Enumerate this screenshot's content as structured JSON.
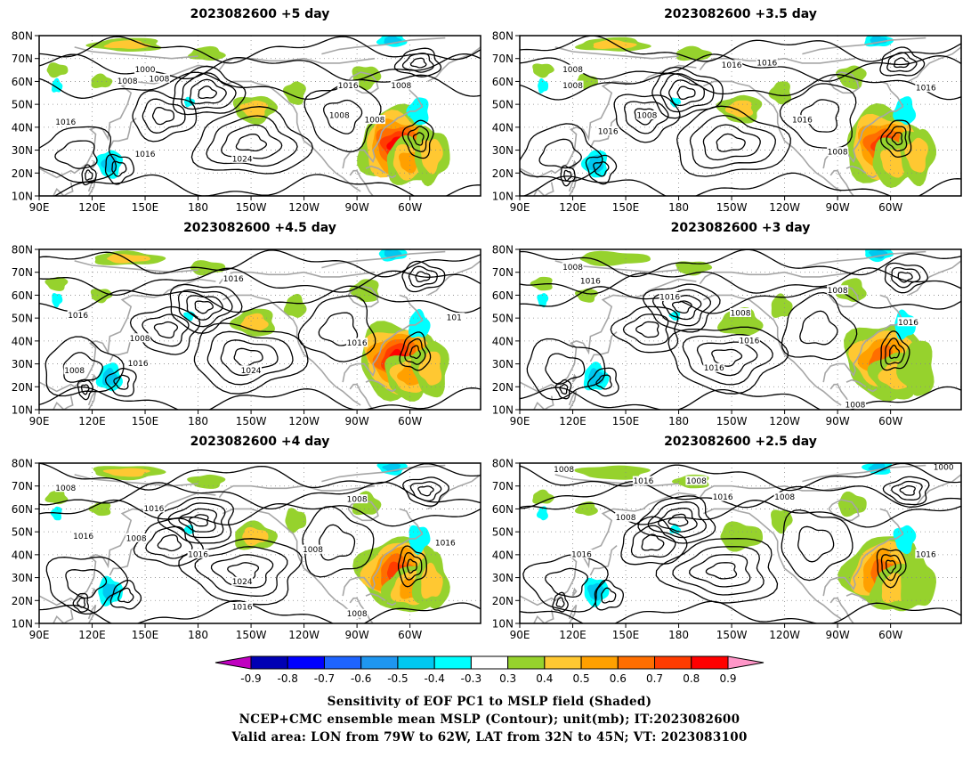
{
  "panels": [
    {
      "title": "2023082600  +5 day",
      "labels": [
        "1000",
        "1008",
        "1008",
        "1016",
        "1016",
        "1016",
        "1024",
        "1008",
        "1008",
        "1008"
      ]
    },
    {
      "title": "2023082600  +3.5  day",
      "labels": [
        "1008",
        "1008",
        "1016",
        "1008",
        "1016",
        "1016",
        "1016",
        "1008",
        "1016"
      ]
    },
    {
      "title": "2023082600  +4.5  day",
      "labels": [
        "1016",
        "1008",
        "1008",
        "1016",
        "1016",
        "1024",
        "1016",
        "101"
      ]
    },
    {
      "title": "2023082600  +3  day",
      "labels": [
        "1008",
        "1016",
        "1016",
        "1008",
        "1016",
        "1008",
        "1016",
        "1016",
        "1008"
      ]
    },
    {
      "title": "2023082600  +4  day",
      "labels": [
        "1008",
        "1016",
        "1016",
        "1008",
        "1016",
        "1024",
        "1016",
        "1008",
        "1008",
        "1008",
        "1016"
      ]
    },
    {
      "title": "2023082600  +2.5  day",
      "labels": [
        "1008",
        "1016",
        "1008",
        "1016",
        "1008",
        "1016",
        "1008",
        "1000",
        "1016"
      ]
    }
  ],
  "axes": {
    "lat_ticks": [
      "80N",
      "70N",
      "60N",
      "50N",
      "40N",
      "30N",
      "20N",
      "10N"
    ],
    "lon_ticks": [
      "90E",
      "120E",
      "150E",
      "180",
      "150W",
      "120W",
      "90W",
      "60W"
    ]
  },
  "colorbar": {
    "ticks": [
      "-0.9",
      "-0.8",
      "-0.7",
      "-0.6",
      "-0.5",
      "-0.4",
      "-0.3",
      "0.3",
      "0.4",
      "0.5",
      "0.6",
      "0.7",
      "0.8",
      "0.9"
    ],
    "colors": [
      "#c000c0",
      "#0000b4",
      "#0000ff",
      "#1e64ff",
      "#1e96f0",
      "#00c8f0",
      "#00ffff",
      "#ffffff",
      "#96d22d",
      "#ffc832",
      "#ffa000",
      "#ff6e00",
      "#ff3c00",
      "#ff0000",
      "#ff96c8"
    ]
  },
  "captions": {
    "line1": "Sensitivity of EOF PC1 to MSLP field (Shaded)",
    "line2": "NCEP+CMC ensemble mean MSLP (Contour); unit(mb); IT:2023082600",
    "line3": "Valid area: LON from 79W to 62W, LAT from 32N to 45N; VT: 2023083100"
  }
}
